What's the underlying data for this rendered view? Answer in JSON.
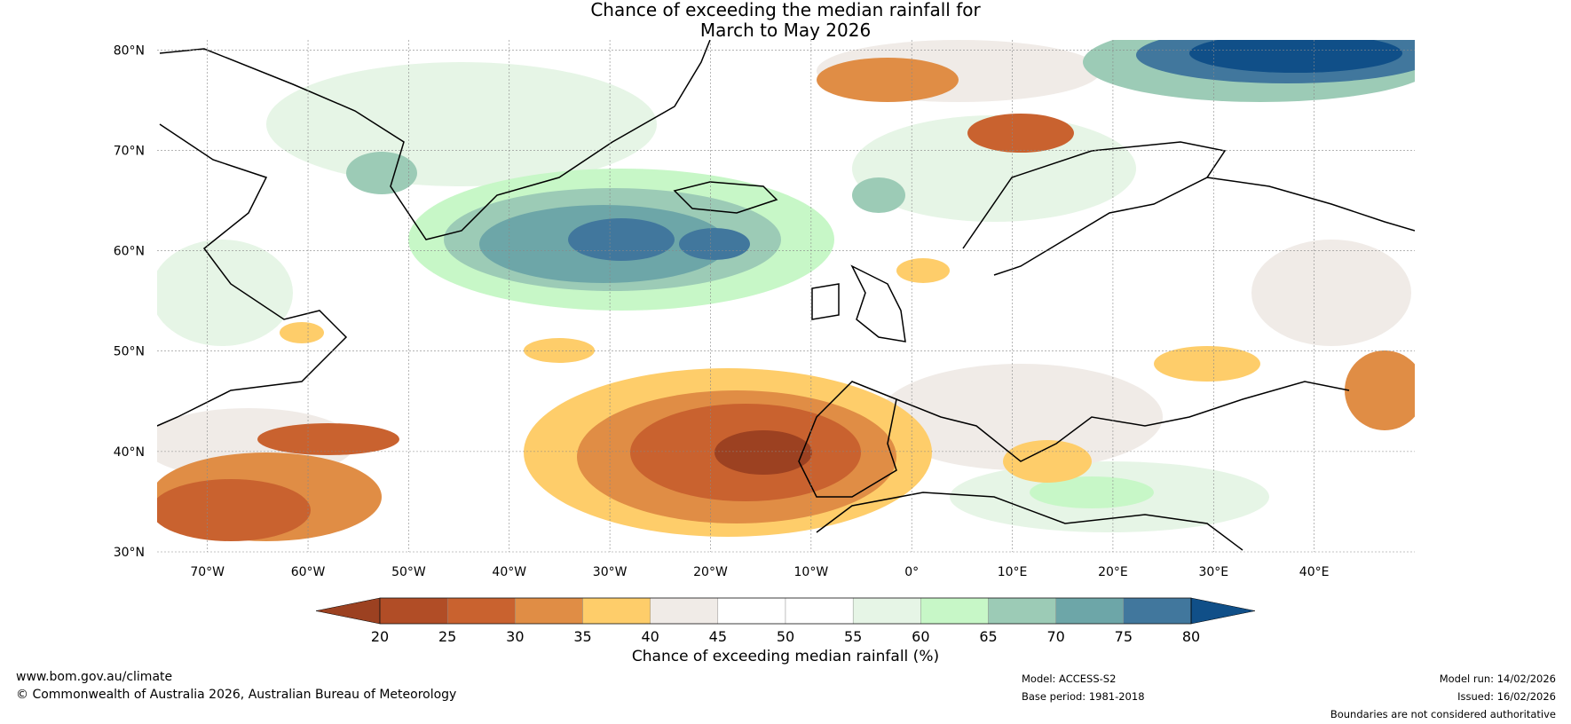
{
  "title": {
    "line1": "Chance of exceeding the median rainfall for",
    "line2": "March to May 2026"
  },
  "map": {
    "lat_labels": [
      "80°N",
      "70°N",
      "60°N",
      "50°N",
      "40°N",
      "30°N"
    ],
    "lon_labels": [
      "70°W",
      "60°W",
      "50°W",
      "40°W",
      "30°W",
      "20°W",
      "10°W",
      "0°",
      "10°E",
      "20°E",
      "30°E",
      "40°E"
    ],
    "lat_range": [
      30,
      81
    ],
    "lon_range": [
      -75,
      50
    ]
  },
  "colorbar": {
    "label": "Chance of exceeding median rainfall (%)",
    "ticks": [
      "20",
      "25",
      "30",
      "35",
      "40",
      "45",
      "50",
      "55",
      "60",
      "65",
      "70",
      "75",
      "80"
    ],
    "colors": [
      "#9c4121",
      "#b14d26",
      "#c9622f",
      "#e08d45",
      "#fecd6a",
      "#f0ebe7",
      "#ffffff",
      "#ffffff",
      "#e6f5e6",
      "#c7f7c7",
      "#9ccbb6",
      "#6da6a8",
      "#41779d",
      "#104f88"
    ],
    "low_ext_color": "#9c4121",
    "high_ext_color": "#104f88"
  },
  "footer": {
    "website": "www.bom.gov.au/climate",
    "copyright": "© Commonwealth of Australia 2026, Australian Bureau of Meteorology",
    "model": "Model: ACCESS-S2",
    "base_period": "Base period: 1981-2018",
    "model_run": "Model run: 14/02/2026",
    "issued": "Issued: 16/02/2026",
    "disclaimer": "Boundaries are not considered authoritative"
  }
}
